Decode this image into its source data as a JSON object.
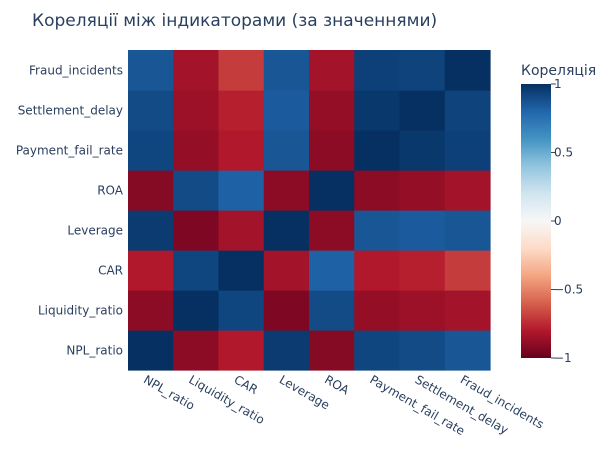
{
  "chart_data": {
    "type": "heatmap",
    "title": "Кореляції між індикаторами (за значеннями)",
    "x_categories": [
      "NPL_ratio",
      "Liquidity_ratio",
      "CAR",
      "Leverage",
      "ROA",
      "Payment_fail_rate",
      "Settlement_delay",
      "Fraud_incidents"
    ],
    "y_categories": [
      "NPL_ratio",
      "Liquidity_ratio",
      "CAR",
      "Leverage",
      "ROA",
      "Payment_fail_rate",
      "Settlement_delay",
      "Fraud_incidents"
    ],
    "z": [
      [
        1.0,
        -0.9,
        -0.8,
        0.96,
        -0.92,
        0.92,
        0.9,
        0.86
      ],
      [
        -0.9,
        1.0,
        0.92,
        -0.94,
        0.9,
        -0.88,
        -0.86,
        -0.84
      ],
      [
        -0.8,
        0.92,
        1.0,
        -0.84,
        0.82,
        -0.8,
        -0.78,
        -0.7
      ],
      [
        0.96,
        -0.94,
        -0.84,
        1.0,
        -0.9,
        0.86,
        0.84,
        0.86
      ],
      [
        -0.92,
        0.9,
        0.82,
        -0.9,
        1.0,
        -0.9,
        -0.88,
        -0.84
      ],
      [
        0.92,
        -0.88,
        -0.8,
        0.86,
        -0.9,
        1.0,
        0.97,
        0.94
      ],
      [
        0.9,
        -0.86,
        -0.78,
        0.84,
        -0.88,
        0.97,
        1.0,
        0.93
      ],
      [
        0.86,
        -0.84,
        -0.7,
        0.86,
        -0.84,
        0.94,
        0.93,
        1.0
      ]
    ],
    "colorscale": "RdBu",
    "zmin": -1,
    "zmax": 1,
    "colorbar_title": "Кореляція",
    "colorbar_ticks": [
      "1",
      "0.5",
      "0",
      "−0.5",
      "−1"
    ],
    "colorbar_tick_values": [
      1,
      0.5,
      0,
      -0.5,
      -1
    ]
  }
}
